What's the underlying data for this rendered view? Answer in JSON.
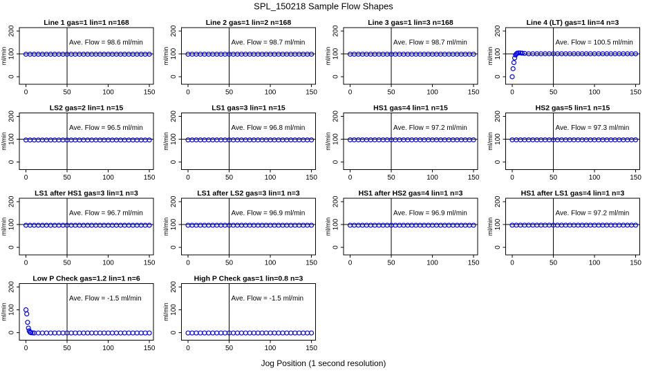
{
  "title": "SPL_150218  Sample Flow Shapes",
  "xlabel": "Jog Position (1 second resolution)",
  "chart_data": [
    {
      "type": "scatter",
      "title": "Line 1 gas=1 lin=1 n=168",
      "annotation": "Ave. Flow = 98.6  ml/min",
      "ylabel": "ml/min",
      "color": "#0000ff",
      "xlim": [
        -8,
        155
      ],
      "ylim": [
        -33,
        215
      ],
      "xticks": [
        0,
        50,
        100,
        150
      ],
      "yticks": [
        0,
        100,
        200
      ],
      "vline": 50,
      "hline": 100,
      "x": [
        0,
        5,
        10,
        15,
        20,
        25,
        30,
        35,
        40,
        45,
        50,
        55,
        60,
        65,
        70,
        75,
        80,
        85,
        90,
        95,
        100,
        105,
        110,
        115,
        120,
        125,
        130,
        135,
        140,
        145,
        150
      ],
      "values": [
        98.6,
        98.6,
        98.6,
        98.6,
        98.6,
        98.6,
        98.6,
        98.6,
        98.6,
        98.6,
        98.6,
        98.6,
        98.6,
        98.6,
        98.6,
        98.6,
        98.6,
        98.6,
        98.6,
        98.6,
        98.6,
        98.6,
        98.6,
        98.6,
        98.6,
        98.6,
        98.6,
        98.6,
        98.6,
        98.6,
        98.6
      ]
    },
    {
      "type": "scatter",
      "title": "Line 2 gas=1 lin=2 n=168",
      "annotation": "Ave. Flow = 98.7  ml/min",
      "ylabel": "ml/min",
      "color": "#0000ff",
      "xlim": [
        -8,
        155
      ],
      "ylim": [
        -33,
        215
      ],
      "xticks": [
        0,
        50,
        100,
        150
      ],
      "yticks": [
        0,
        100,
        200
      ],
      "vline": 50,
      "hline": 100,
      "x": [
        0,
        5,
        10,
        15,
        20,
        25,
        30,
        35,
        40,
        45,
        50,
        55,
        60,
        65,
        70,
        75,
        80,
        85,
        90,
        95,
        100,
        105,
        110,
        115,
        120,
        125,
        130,
        135,
        140,
        145,
        150
      ],
      "values": [
        98.7,
        98.7,
        98.7,
        98.7,
        98.7,
        98.7,
        98.7,
        98.7,
        98.7,
        98.7,
        98.7,
        98.7,
        98.7,
        98.7,
        98.7,
        98.7,
        98.7,
        98.7,
        98.7,
        98.7,
        98.7,
        98.7,
        98.7,
        98.7,
        98.7,
        98.7,
        98.7,
        98.7,
        98.7,
        98.7,
        98.7
      ]
    },
    {
      "type": "scatter",
      "title": "Line 3 gas=1 lin=3 n=168",
      "annotation": "Ave. Flow = 98.7  ml/min",
      "ylabel": "ml/min",
      "color": "#0000ff",
      "xlim": [
        -8,
        155
      ],
      "ylim": [
        -33,
        215
      ],
      "xticks": [
        0,
        50,
        100,
        150
      ],
      "yticks": [
        0,
        100,
        200
      ],
      "vline": 50,
      "hline": 100,
      "x": [
        0,
        5,
        10,
        15,
        20,
        25,
        30,
        35,
        40,
        45,
        50,
        55,
        60,
        65,
        70,
        75,
        80,
        85,
        90,
        95,
        100,
        105,
        110,
        115,
        120,
        125,
        130,
        135,
        140,
        145,
        150
      ],
      "values": [
        98.7,
        98.7,
        98.7,
        98.7,
        98.7,
        98.7,
        98.7,
        98.7,
        98.7,
        98.7,
        98.7,
        98.7,
        98.7,
        98.7,
        98.7,
        98.7,
        98.7,
        98.7,
        98.7,
        98.7,
        98.7,
        98.7,
        98.7,
        98.7,
        98.7,
        98.7,
        98.7,
        98.7,
        98.7,
        98.7,
        98.7
      ]
    },
    {
      "type": "scatter",
      "title": "Line 4 (LT) gas=1 lin=4 n=3",
      "annotation": "Ave. Flow = 100.5  ml/min",
      "ylabel": "ml/min",
      "color": "#0000ff",
      "xlim": [
        -8,
        155
      ],
      "ylim": [
        -33,
        215
      ],
      "xticks": [
        0,
        50,
        100,
        150
      ],
      "yticks": [
        0,
        100,
        200
      ],
      "vline": 50,
      "hline": 100,
      "x": [
        0,
        1,
        2,
        3,
        4,
        5,
        6,
        8,
        10,
        12,
        15,
        20,
        25,
        30,
        35,
        40,
        45,
        50,
        55,
        60,
        65,
        70,
        75,
        80,
        85,
        90,
        95,
        100,
        105,
        110,
        115,
        120,
        125,
        130,
        135,
        140,
        145,
        150
      ],
      "values": [
        0,
        35,
        62,
        82,
        95,
        100,
        103,
        104,
        104,
        103,
        102,
        100.5,
        100.5,
        100.5,
        100.5,
        100.5,
        100.5,
        100.5,
        100.5,
        100.5,
        100.5,
        100.5,
        100.5,
        100.5,
        100.5,
        100.5,
        100.5,
        100.5,
        100.5,
        100.5,
        100.5,
        100.5,
        100.5,
        100.5,
        100.5,
        100.5,
        100.5,
        100.5
      ]
    },
    {
      "type": "scatter",
      "title": "LS2 gas=2 lin=1 n=15",
      "annotation": "Ave. Flow = 96.5  ml/min",
      "ylabel": "ml/min",
      "color": "#0000ff",
      "xlim": [
        -8,
        155
      ],
      "ylim": [
        -33,
        215
      ],
      "xticks": [
        0,
        50,
        100,
        150
      ],
      "yticks": [
        0,
        100,
        200
      ],
      "vline": 50,
      "hline": 100,
      "x": [
        0,
        5,
        10,
        15,
        20,
        25,
        30,
        35,
        40,
        45,
        50,
        55,
        60,
        65,
        70,
        75,
        80,
        85,
        90,
        95,
        100,
        105,
        110,
        115,
        120,
        125,
        130,
        135,
        140,
        145,
        150
      ],
      "values": [
        96.5,
        96.5,
        96.5,
        96.5,
        96.5,
        96.5,
        96.5,
        96.5,
        96.5,
        96.5,
        96.5,
        96.5,
        96.5,
        96.5,
        96.5,
        96.5,
        96.5,
        96.5,
        96.5,
        96.5,
        96.5,
        96.5,
        96.5,
        96.5,
        96.5,
        96.5,
        96.5,
        96.5,
        96.5,
        96.5,
        96.5
      ]
    },
    {
      "type": "scatter",
      "title": "LS1 gas=3 lin=1 n=15",
      "annotation": "Ave. Flow = 96.8  ml/min",
      "ylabel": "ml/min",
      "color": "#0000ff",
      "xlim": [
        -8,
        155
      ],
      "ylim": [
        -33,
        215
      ],
      "xticks": [
        0,
        50,
        100,
        150
      ],
      "yticks": [
        0,
        100,
        200
      ],
      "vline": 50,
      "hline": 100,
      "x": [
        0,
        5,
        10,
        15,
        20,
        25,
        30,
        35,
        40,
        45,
        50,
        55,
        60,
        65,
        70,
        75,
        80,
        85,
        90,
        95,
        100,
        105,
        110,
        115,
        120,
        125,
        130,
        135,
        140,
        145,
        150
      ],
      "values": [
        96.8,
        96.8,
        96.8,
        96.8,
        96.8,
        96.8,
        96.8,
        96.8,
        96.8,
        96.8,
        96.8,
        96.8,
        96.8,
        96.8,
        96.8,
        96.8,
        96.8,
        96.8,
        96.8,
        96.8,
        96.8,
        96.8,
        96.8,
        96.8,
        96.8,
        96.8,
        96.8,
        96.8,
        96.8,
        96.8,
        96.8
      ]
    },
    {
      "type": "scatter",
      "title": "HS1 gas=4 lin=1 n=15",
      "annotation": "Ave. Flow = 97.2  ml/min",
      "ylabel": "ml/min",
      "color": "#0000ff",
      "xlim": [
        -8,
        155
      ],
      "ylim": [
        -33,
        215
      ],
      "xticks": [
        0,
        50,
        100,
        150
      ],
      "yticks": [
        0,
        100,
        200
      ],
      "vline": 50,
      "hline": 100,
      "x": [
        0,
        5,
        10,
        15,
        20,
        25,
        30,
        35,
        40,
        45,
        50,
        55,
        60,
        65,
        70,
        75,
        80,
        85,
        90,
        95,
        100,
        105,
        110,
        115,
        120,
        125,
        130,
        135,
        140,
        145,
        150
      ],
      "values": [
        97.2,
        97.2,
        97.2,
        97.2,
        97.2,
        97.2,
        97.2,
        97.2,
        97.2,
        97.2,
        97.2,
        97.2,
        97.2,
        97.2,
        97.2,
        97.2,
        97.2,
        97.2,
        97.2,
        97.2,
        97.2,
        97.2,
        97.2,
        97.2,
        97.2,
        97.2,
        97.2,
        97.2,
        97.2,
        97.2,
        97.2
      ]
    },
    {
      "type": "scatter",
      "title": "HS2 gas=5 lin=1 n=15",
      "annotation": "Ave. Flow = 97.3  ml/min",
      "ylabel": "ml/min",
      "color": "#0000ff",
      "xlim": [
        -8,
        155
      ],
      "ylim": [
        -33,
        215
      ],
      "xticks": [
        0,
        50,
        100,
        150
      ],
      "yticks": [
        0,
        100,
        200
      ],
      "vline": 50,
      "hline": 100,
      "x": [
        0,
        5,
        10,
        15,
        20,
        25,
        30,
        35,
        40,
        45,
        50,
        55,
        60,
        65,
        70,
        75,
        80,
        85,
        90,
        95,
        100,
        105,
        110,
        115,
        120,
        125,
        130,
        135,
        140,
        145,
        150
      ],
      "values": [
        97.3,
        97.3,
        97.3,
        97.3,
        97.3,
        97.3,
        97.3,
        97.3,
        97.3,
        97.3,
        97.3,
        97.3,
        97.3,
        97.3,
        97.3,
        97.3,
        97.3,
        97.3,
        97.3,
        97.3,
        97.3,
        97.3,
        97.3,
        97.3,
        97.3,
        97.3,
        97.3,
        97.3,
        97.3,
        97.3,
        97.3
      ]
    },
    {
      "type": "scatter",
      "title": "LS1 after HS1 gas=3 lin=1 n=3",
      "annotation": "Ave. Flow = 96.7  ml/min",
      "ylabel": "ml/min",
      "color": "#0000ff",
      "xlim": [
        -8,
        155
      ],
      "ylim": [
        -33,
        215
      ],
      "xticks": [
        0,
        50,
        100,
        150
      ],
      "yticks": [
        0,
        100,
        200
      ],
      "vline": 50,
      "hline": 100,
      "x": [
        0,
        5,
        10,
        15,
        20,
        25,
        30,
        35,
        40,
        45,
        50,
        55,
        60,
        65,
        70,
        75,
        80,
        85,
        90,
        95,
        100,
        105,
        110,
        115,
        120,
        125,
        130,
        135,
        140,
        145,
        150
      ],
      "values": [
        96.7,
        96.7,
        96.7,
        96.7,
        96.7,
        96.7,
        96.7,
        96.7,
        96.7,
        96.7,
        96.7,
        96.7,
        96.7,
        96.7,
        96.7,
        96.7,
        96.7,
        96.7,
        96.7,
        96.7,
        96.7,
        96.7,
        96.7,
        96.7,
        96.7,
        96.7,
        96.7,
        96.7,
        96.7,
        96.7,
        96.7
      ]
    },
    {
      "type": "scatter",
      "title": "LS1 after LS2 gas=3 lin=1 n=3",
      "annotation": "Ave. Flow = 96.9  ml/min",
      "ylabel": "ml/min",
      "color": "#0000ff",
      "xlim": [
        -8,
        155
      ],
      "ylim": [
        -33,
        215
      ],
      "xticks": [
        0,
        50,
        100,
        150
      ],
      "yticks": [
        0,
        100,
        200
      ],
      "vline": 50,
      "hline": 100,
      "x": [
        0,
        5,
        10,
        15,
        20,
        25,
        30,
        35,
        40,
        45,
        50,
        55,
        60,
        65,
        70,
        75,
        80,
        85,
        90,
        95,
        100,
        105,
        110,
        115,
        120,
        125,
        130,
        135,
        140,
        145,
        150
      ],
      "values": [
        96.9,
        96.9,
        96.9,
        96.9,
        96.9,
        96.9,
        96.9,
        96.9,
        96.9,
        96.9,
        96.9,
        96.9,
        96.9,
        96.9,
        96.9,
        96.9,
        96.9,
        96.9,
        96.9,
        96.9,
        96.9,
        96.9,
        96.9,
        96.9,
        96.9,
        96.9,
        96.9,
        96.9,
        96.9,
        96.9,
        96.9
      ]
    },
    {
      "type": "scatter",
      "title": "HS1 after HS2 gas=4 lin=1 n=3",
      "annotation": "Ave. Flow = 96.9  ml/min",
      "ylabel": "ml/min",
      "color": "#0000ff",
      "xlim": [
        -8,
        155
      ],
      "ylim": [
        -33,
        215
      ],
      "xticks": [
        0,
        50,
        100,
        150
      ],
      "yticks": [
        0,
        100,
        200
      ],
      "vline": 50,
      "hline": 100,
      "x": [
        0,
        5,
        10,
        15,
        20,
        25,
        30,
        35,
        40,
        45,
        50,
        55,
        60,
        65,
        70,
        75,
        80,
        85,
        90,
        95,
        100,
        105,
        110,
        115,
        120,
        125,
        130,
        135,
        140,
        145,
        150
      ],
      "values": [
        96.9,
        96.9,
        96.9,
        96.9,
        96.9,
        96.9,
        96.9,
        96.9,
        96.9,
        96.9,
        96.9,
        96.9,
        96.9,
        96.9,
        96.9,
        96.9,
        96.9,
        96.9,
        96.9,
        96.9,
        96.9,
        96.9,
        96.9,
        96.9,
        96.9,
        96.9,
        96.9,
        96.9,
        96.9,
        96.9,
        96.9
      ]
    },
    {
      "type": "scatter",
      "title": "HS1 after LS1 gas=4 lin=1 n=3",
      "annotation": "Ave. Flow = 97.2  ml/min",
      "ylabel": "ml/min",
      "color": "#0000ff",
      "xlim": [
        -8,
        155
      ],
      "ylim": [
        -33,
        215
      ],
      "xticks": [
        0,
        50,
        100,
        150
      ],
      "yticks": [
        0,
        100,
        200
      ],
      "vline": 50,
      "hline": 100,
      "x": [
        0,
        5,
        10,
        15,
        20,
        25,
        30,
        35,
        40,
        45,
        50,
        55,
        60,
        65,
        70,
        75,
        80,
        85,
        90,
        95,
        100,
        105,
        110,
        115,
        120,
        125,
        130,
        135,
        140,
        145,
        150
      ],
      "values": [
        97.2,
        97.2,
        97.2,
        97.2,
        97.2,
        97.2,
        97.2,
        97.2,
        97.2,
        97.2,
        97.2,
        97.2,
        97.2,
        97.2,
        97.2,
        97.2,
        97.2,
        97.2,
        97.2,
        97.2,
        97.2,
        97.2,
        97.2,
        97.2,
        97.2,
        97.2,
        97.2,
        97.2,
        97.2,
        97.2,
        97.2
      ]
    },
    {
      "type": "scatter",
      "title": "Low P Check gas=1.2 lin=1 n=6",
      "annotation": "Ave. Flow = -1.5  ml/min",
      "ylabel": "ml/min",
      "color": "#0000ff",
      "xlim": [
        -8,
        155
      ],
      "ylim": [
        -33,
        215
      ],
      "xticks": [
        0,
        50,
        100,
        150
      ],
      "yticks": [
        0,
        100,
        200
      ],
      "vline": 50,
      "x": [
        0,
        1,
        2,
        3,
        4,
        5,
        6,
        8,
        10,
        15,
        20,
        25,
        30,
        35,
        40,
        45,
        50,
        55,
        60,
        65,
        70,
        75,
        80,
        85,
        90,
        95,
        100,
        105,
        110,
        115,
        120,
        125,
        130,
        135,
        140,
        145,
        150
      ],
      "values": [
        100,
        82,
        45,
        20,
        8,
        2,
        0,
        -1,
        -1.5,
        -1.5,
        -1.5,
        -1.5,
        -1.5,
        -1.5,
        -1.5,
        -1.5,
        -1.5,
        -1.5,
        -1.5,
        -1.5,
        -1.5,
        -1.5,
        -1.5,
        -1.5,
        -1.5,
        -1.5,
        -1.5,
        -1.5,
        -1.5,
        -1.5,
        -1.5,
        -1.5,
        -1.5,
        -1.5,
        -1.5,
        -1.5,
        -1.5
      ]
    },
    {
      "type": "scatter",
      "title": "High P Check gas=1 lin=0.8 n=3",
      "annotation": "Ave. Flow = -1.5  ml/min",
      "ylabel": "ml/min",
      "color": "#0000ff",
      "xlim": [
        -8,
        155
      ],
      "ylim": [
        -33,
        215
      ],
      "xticks": [
        0,
        50,
        100,
        150
      ],
      "yticks": [
        0,
        100,
        200
      ],
      "vline": 50,
      "x": [
        0,
        5,
        10,
        15,
        20,
        25,
        30,
        35,
        40,
        45,
        50,
        55,
        60,
        65,
        70,
        75,
        80,
        85,
        90,
        95,
        100,
        105,
        110,
        115,
        120,
        125,
        130,
        135,
        140,
        145,
        150
      ],
      "values": [
        -1.5,
        -1.5,
        -1.5,
        -1.5,
        -1.5,
        -1.5,
        -1.5,
        -1.5,
        -1.5,
        -1.5,
        -1.5,
        -1.5,
        -1.5,
        -1.5,
        -1.5,
        -1.5,
        -1.5,
        -1.5,
        -1.5,
        -1.5,
        -1.5,
        -1.5,
        -1.5,
        -1.5,
        -1.5,
        -1.5,
        -1.5,
        -1.5,
        -1.5,
        -1.5,
        -1.5
      ]
    }
  ]
}
